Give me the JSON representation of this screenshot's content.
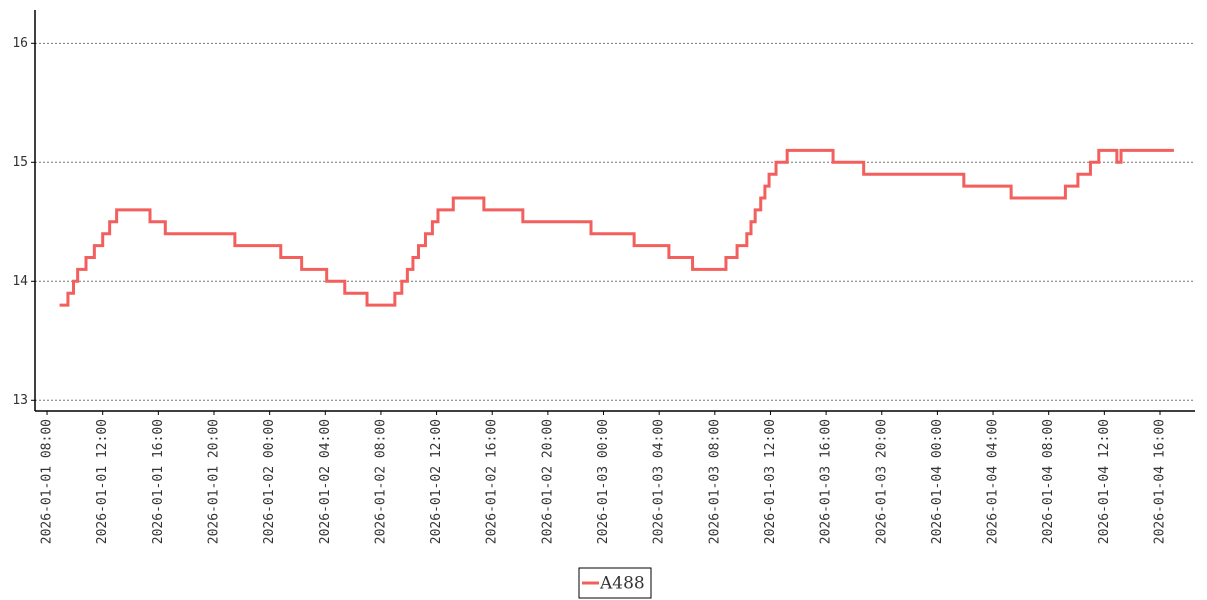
{
  "chart_data": {
    "type": "line",
    "step": "post",
    "x": [
      "2026-01-01 08:54",
      "2026-01-01 09:30",
      "2026-01-01 09:54",
      "2026-01-01 10:12",
      "2026-01-01 10:48",
      "2026-01-01 11:24",
      "2026-01-01 12:00",
      "2026-01-01 12:30",
      "2026-01-01 13:00",
      "2026-01-01 15:24",
      "2026-01-01 16:30",
      "2026-01-01 21:30",
      "2026-01-02 00:48",
      "2026-01-02 02:18",
      "2026-01-02 04:06",
      "2026-01-02 05:24",
      "2026-01-02 07:00",
      "2026-01-02 09:00",
      "2026-01-02 09:30",
      "2026-01-02 09:54",
      "2026-01-02 10:18",
      "2026-01-02 10:42",
      "2026-01-02 11:12",
      "2026-01-02 11:42",
      "2026-01-02 12:06",
      "2026-01-02 13:12",
      "2026-01-02 15:24",
      "2026-01-02 18:12",
      "2026-01-02 23:06",
      "2026-01-03 02:12",
      "2026-01-03 04:42",
      "2026-01-03 06:24",
      "2026-01-03 08:48",
      "2026-01-03 09:36",
      "2026-01-03 10:18",
      "2026-01-03 10:36",
      "2026-01-03 10:54",
      "2026-01-03 11:18",
      "2026-01-03 11:36",
      "2026-01-03 11:54",
      "2026-01-03 12:24",
      "2026-01-03 13:12",
      "2026-01-03 16:30",
      "2026-01-03 18:42",
      "2026-01-04 01:54",
      "2026-01-04 05:18",
      "2026-01-04 09:12",
      "2026-01-04 10:06",
      "2026-01-04 11:00",
      "2026-01-04 11:36",
      "2026-01-04 12:54",
      "2026-01-04 13:12",
      "2026-01-04 17:00"
    ],
    "series": [
      {
        "name": "A488",
        "color": "#f25f5c",
        "values": [
          13.8,
          13.9,
          14.0,
          14.1,
          14.2,
          14.3,
          14.4,
          14.5,
          14.6,
          14.5,
          14.4,
          14.3,
          14.2,
          14.1,
          14.0,
          13.9,
          13.8,
          13.9,
          14.0,
          14.1,
          14.2,
          14.3,
          14.4,
          14.5,
          14.6,
          14.7,
          14.6,
          14.5,
          14.4,
          14.3,
          14.2,
          14.1,
          14.2,
          14.3,
          14.4,
          14.5,
          14.6,
          14.7,
          14.8,
          14.9,
          15.0,
          15.1,
          15.0,
          14.9,
          14.8,
          14.7,
          14.8,
          14.9,
          15.0,
          15.1,
          15.0,
          15.1,
          15.1
        ]
      }
    ],
    "xlim": [
      "2026-01-01 07:08",
      "2026-01-04 18:31"
    ],
    "xticks": [
      "2026-01-01 08:00",
      "2026-01-01 12:00",
      "2026-01-01 16:00",
      "2026-01-01 20:00",
      "2026-01-02 00:00",
      "2026-01-02 04:00",
      "2026-01-02 08:00",
      "2026-01-02 12:00",
      "2026-01-02 16:00",
      "2026-01-02 20:00",
      "2026-01-03 00:00",
      "2026-01-03 04:00",
      "2026-01-03 08:00",
      "2026-01-03 12:00",
      "2026-01-03 16:00",
      "2026-01-03 20:00",
      "2026-01-04 00:00",
      "2026-01-04 04:00",
      "2026-01-04 08:00",
      "2026-01-04 12:00",
      "2026-01-04 16:00"
    ],
    "ylim": [
      12.91,
      16.28
    ],
    "yticks": [
      13,
      14,
      15,
      16
    ],
    "grid": true,
    "legend": "bottom"
  }
}
